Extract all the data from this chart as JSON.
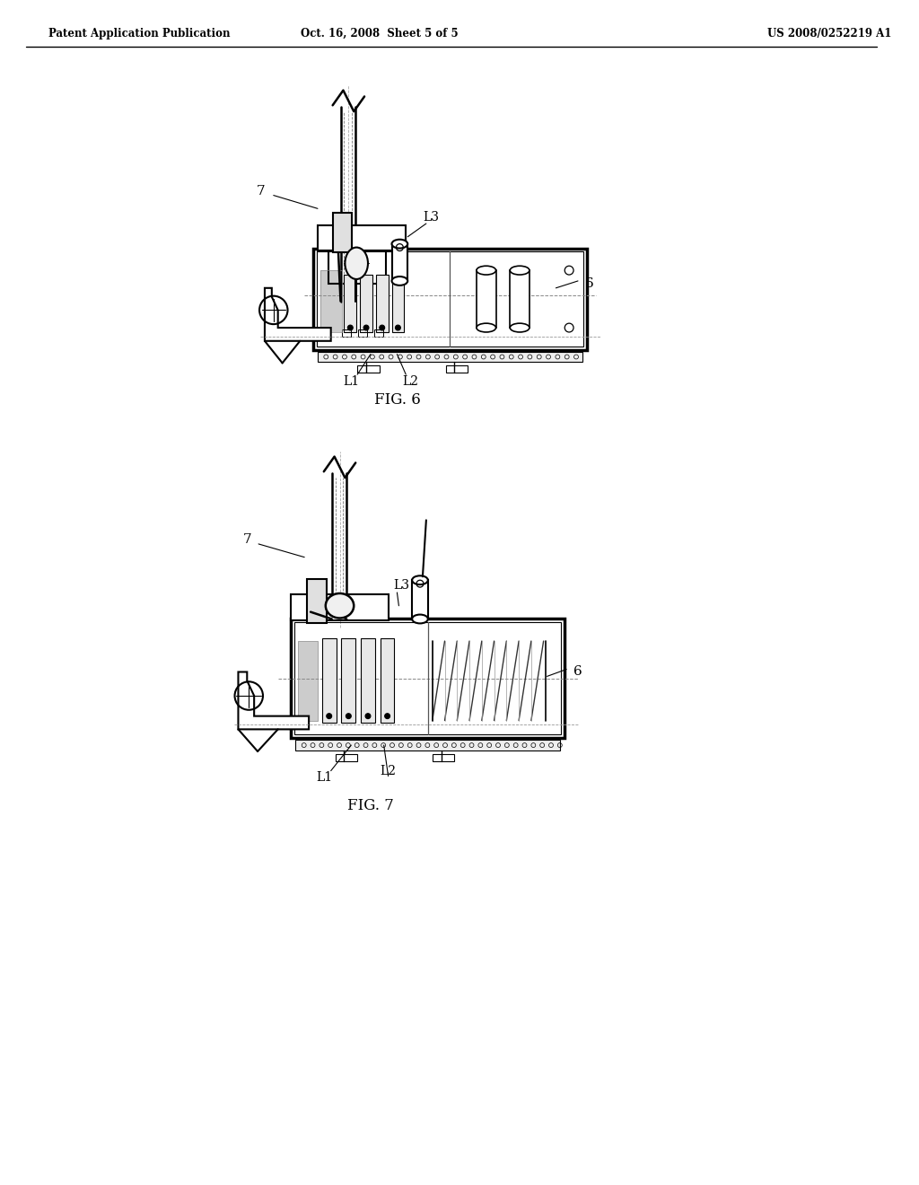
{
  "title_left": "Patent Application Publication",
  "title_center": "Oct. 16, 2008  Sheet 5 of 5",
  "title_right": "US 2008/0252219 A1",
  "fig6_label": "FIG. 6",
  "fig7_label": "FIG. 7",
  "bg_color": "#ffffff",
  "line_color": "#000000"
}
